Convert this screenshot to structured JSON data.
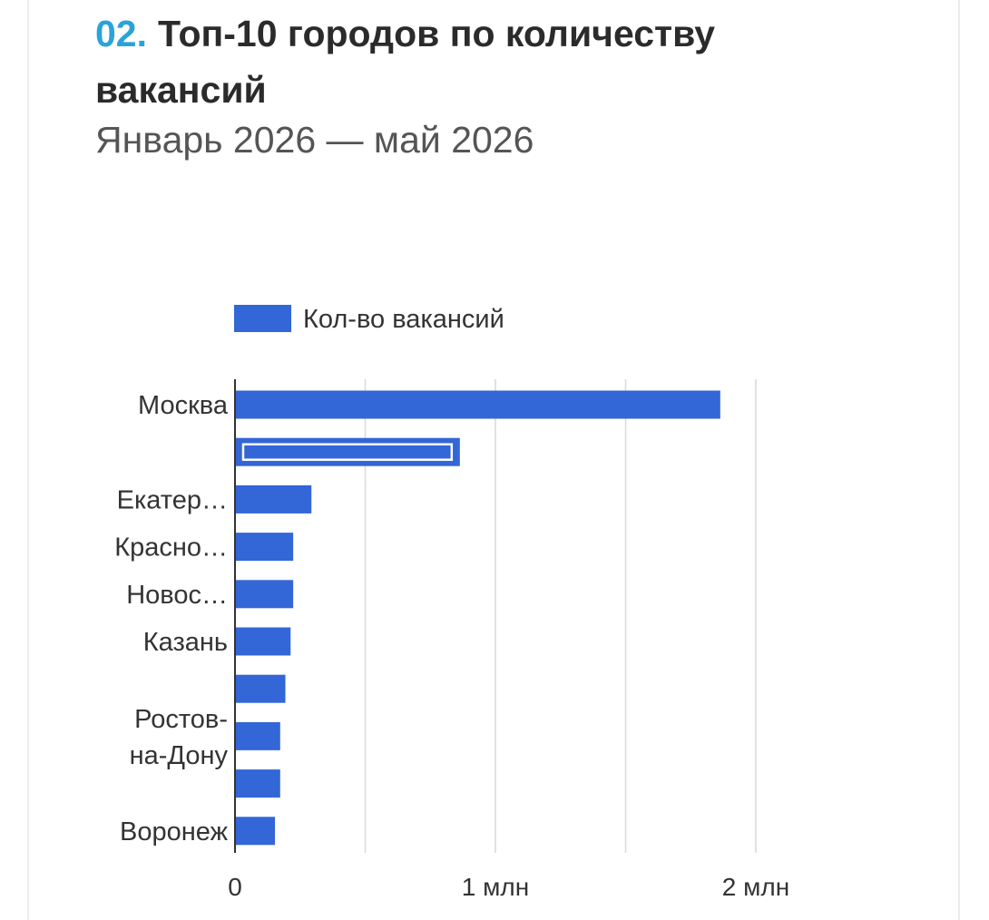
{
  "header": {
    "number": "02.",
    "title_line1": "Топ-10 городов по количеству",
    "title_line2": "вакансий",
    "subtitle": "Январь 2026 — май 2026"
  },
  "colors": {
    "accent": "#2aa3d8",
    "bar": "#3366d6",
    "grid": "#d9d9d9",
    "axis": "#333333",
    "text": "#333333"
  },
  "chart_data": {
    "type": "bar",
    "orientation": "horizontal",
    "legend": {
      "position": "top",
      "entries": [
        "Кол-во вакансий"
      ]
    },
    "series": [
      {
        "name": "Кол-во вакансий",
        "values": [
          1860000,
          860000,
          290000,
          220000,
          220000,
          210000,
          190000,
          170000,
          170000,
          150000
        ]
      }
    ],
    "categories": [
      [
        "Москва"
      ],
      [
        ""
      ],
      [
        "Екатер…"
      ],
      [
        "Красно…"
      ],
      [
        "Новос…"
      ],
      [
        "Казань"
      ],
      [
        ""
      ],
      [
        "Ростов-",
        "на-Дону"
      ],
      [
        ""
      ],
      [
        "Воронеж"
      ]
    ],
    "highlighted_index": 1,
    "xlim": [
      0,
      2200000
    ],
    "ticks": [
      {
        "value": 0,
        "label": "0"
      },
      {
        "value": 1000000,
        "label": "1 млн"
      },
      {
        "value": 2000000,
        "label": "2 млн"
      }
    ],
    "gridlines": [
      500000,
      1000000,
      1500000,
      2000000
    ],
    "grid": true
  }
}
